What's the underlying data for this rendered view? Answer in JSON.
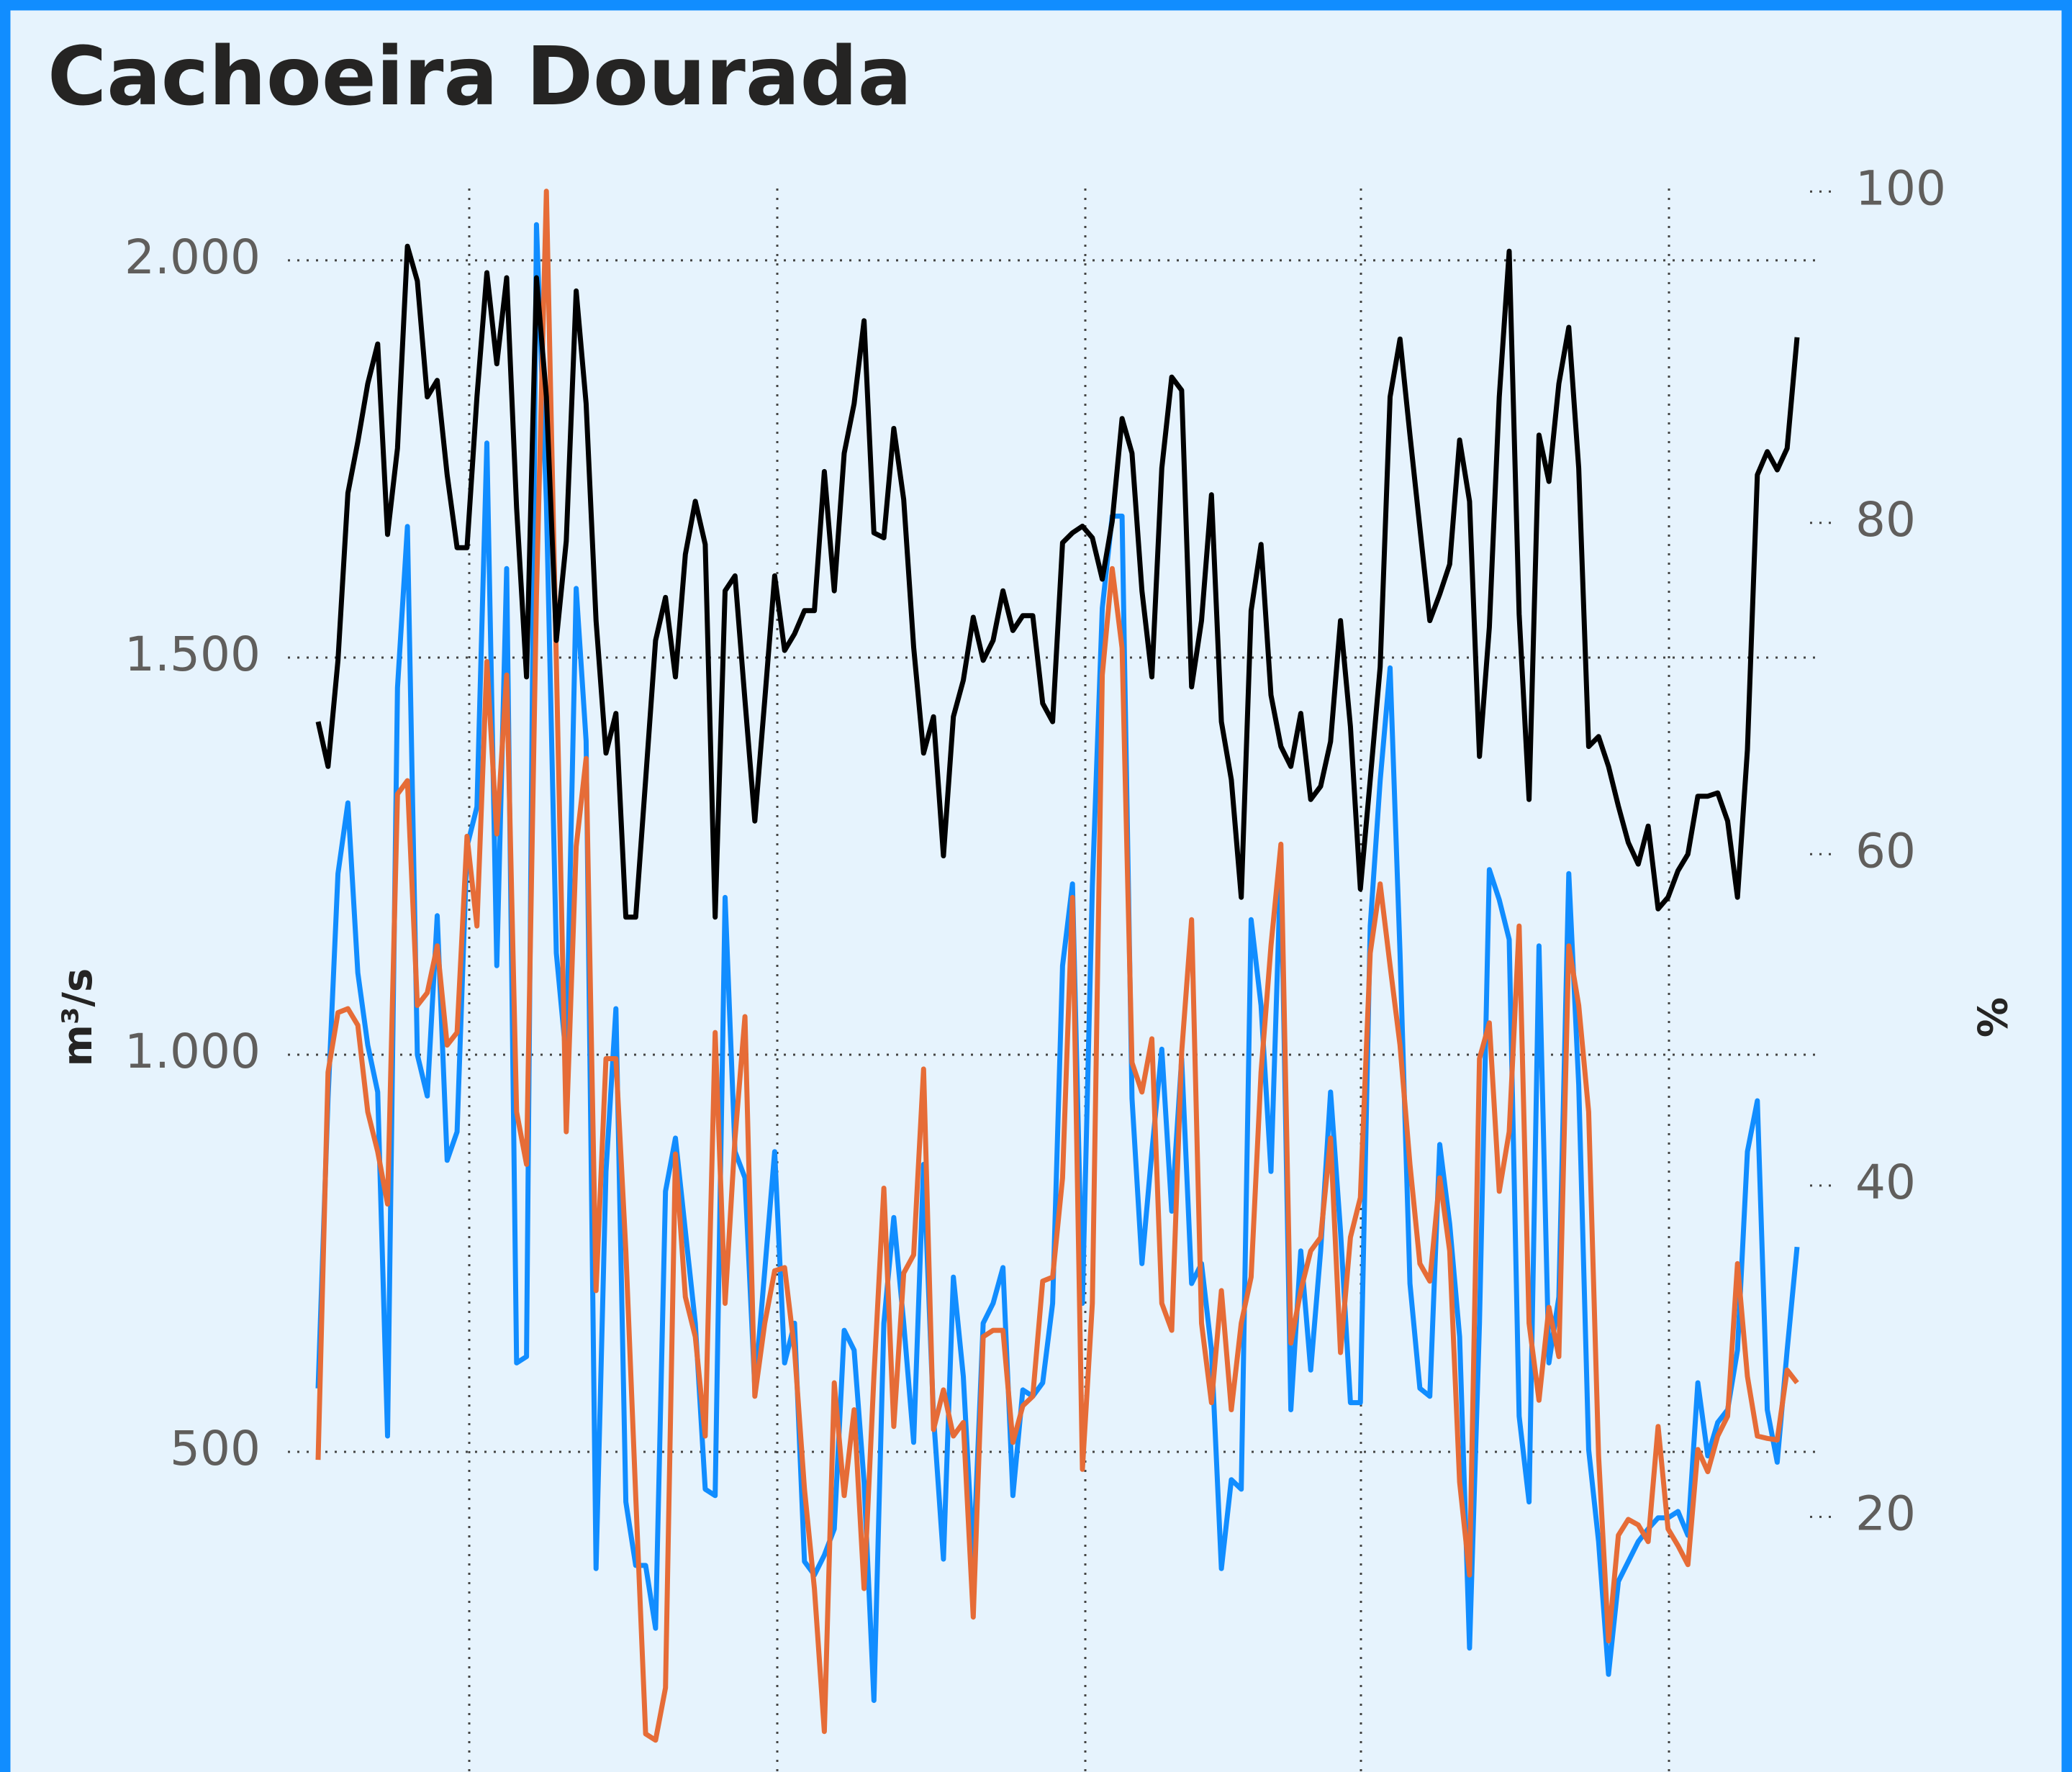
{
  "chart_data": {
    "type": "line",
    "title": "Cachoeira Dourada",
    "y_label": "m³/s",
    "y2_label": "%",
    "ylim": [
      97,
      2095
    ],
    "yticks": [
      500,
      {
        "value": 1000,
        "label": "1.000"
      },
      {
        "value": 1500,
        "label": "1.500"
      },
      {
        "value": 2000,
        "label": "2.000"
      }
    ],
    "y2lim": [
      4.6,
      100.4
    ],
    "y2ticks": [
      20,
      40,
      60,
      80,
      100
    ],
    "grid": true,
    "series": [
      {
        "color": "#118dff",
        "values": [
          580,
          945,
          1228,
          1317,
          1103,
          1012,
          953,
          520,
          1462,
          1665,
          1000,
          948,
          1175,
          867,
          903,
          1262,
          1312,
          1770,
          1112,
          1612,
          612,
          620,
          2045,
          1695,
          1128,
          995,
          1587,
          1395,
          353,
          853,
          1058,
          437,
          357,
          357,
          278,
          828,
          895,
          778,
          662,
          453,
          445,
          1198,
          878,
          845,
          580,
          728,
          878,
          612,
          662,
          362,
          345,
          370,
          403,
          653,
          628,
          462,
          187,
          662,
          795,
          662,
          512,
          862,
          545,
          365,
          720,
          595,
          362,
          662,
          687,
          732,
          445,
          578,
          570,
          587,
          687,
          1112,
          1215,
          687,
          1212,
          1562,
          1678,
          1678,
          945,
          737,
          878,
          1007,
          803,
          995,
          712,
          737,
          628,
          353,
          465,
          453,
          1170,
          1062,
          853,
          1245,
          553,
          753,
          603,
          753,
          953,
          778,
          562,
          562,
          1162,
          1345,
          1487,
          1128,
          712,
          580,
          570,
          887,
          787,
          645,
          253,
          662,
          1233,
          1195,
          1145,
          545,
          437,
          1137,
          612,
          695,
          1228,
          962,
          503,
          387,
          220,
          337,
          362,
          387,
          403,
          417,
          417,
          425,
          395,
          587,
          495,
          537,
          553,
          628,
          878,
          942,
          553,
          487,
          628,
          758
        ]
      },
      {
        "color": "#e66c37",
        "values": [
          490,
          978,
          1053,
          1058,
          1037,
          928,
          878,
          812,
          1328,
          1345,
          1062,
          1078,
          1137,
          1012,
          1028,
          1275,
          1162,
          1495,
          1278,
          1478,
          928,
          862,
          1578,
          2087,
          1495,
          903,
          1262,
          1373,
          703,
          995,
          995,
          753,
          445,
          145,
          137,
          203,
          875,
          695,
          645,
          520,
          1028,
          687,
          895,
          1048,
          570,
          662,
          728,
          732,
          628,
          453,
          328,
          148,
          587,
          445,
          553,
          328,
          595,
          832,
          532,
          725,
          748,
          982,
          528,
          578,
          520,
          537,
          292,
          645,
          653,
          653,
          512,
          558,
          570,
          715,
          720,
          845,
          1198,
          478,
          687,
          1478,
          1612,
          1512,
          990,
          953,
          1020,
          687,
          653,
          1003,
          1170,
          662,
          562,
          703,
          553,
          662,
          720,
          978,
          1137,
          1265,
          637,
          703,
          753,
          770,
          895,
          625,
          770,
          820,
          1128,
          1215,
          1112,
          1012,
          862,
          737,
          715,
          845,
          753,
          462,
          345,
          995,
          1040,
          828,
          903,
          1162,
          662,
          565,
          682,
          620,
          1137,
          1062,
          928,
          495,
          262,
          395,
          415,
          408,
          387,
          532,
          403,
          382,
          358,
          503,
          475,
          520,
          545,
          737,
          595,
          520,
          517,
          515,
          603,
          587
        ]
      },
      {
        "color": "#000000",
        "axis": "y2",
        "values": [
          68,
          65.3,
          71.7,
          81.8,
          84.9,
          88.4,
          90.8,
          79.3,
          84.5,
          96.7,
          94.6,
          87.6,
          88.6,
          82.9,
          78.5,
          78.5,
          87.6,
          95.1,
          89.6,
          94.8,
          80.9,
          70.7,
          94.8,
          87.6,
          72.9,
          78.9,
          94,
          87.2,
          74.1,
          66.1,
          68.5,
          56.2,
          56.2,
          64.5,
          72.9,
          75.5,
          70.7,
          78.1,
          81.3,
          78.7,
          56.2,
          75.9,
          76.8,
          69.3,
          62,
          69.3,
          76.8,
          72.3,
          73.3,
          74.7,
          74.7,
          83.1,
          75.9,
          84.2,
          87.2,
          92.2,
          79.4,
          79.1,
          85.7,
          81.4,
          72.5,
          66.1,
          68.3,
          59.9,
          68.3,
          70.5,
          74.3,
          71.7,
          72.9,
          75.9,
          73.5,
          74.4,
          74.4,
          69.1,
          68,
          78.8,
          79.4,
          79.8,
          79.1,
          76.6,
          80.1,
          86.3,
          84.2,
          75.9,
          70.7,
          83.3,
          88.8,
          88,
          70.1,
          74.1,
          81.7,
          68,
          64.5,
          57.4,
          74.7,
          78.7,
          69.6,
          66.5,
          65.3,
          68.5,
          63.3,
          64.1,
          66.8,
          74.1,
          67.7,
          57.9,
          64.5,
          71.3,
          87.6,
          91.1,
          85.3,
          79.7,
          74.1,
          75.7,
          77.5,
          85,
          81.3,
          65.9,
          73.7,
          87.6,
          96.4,
          74.5,
          63.3,
          85.3,
          82.5,
          88.4,
          91.8,
          83.3,
          66.5,
          67.1,
          65.3,
          62.9,
          60.7,
          59.4,
          61.7,
          56.7,
          57.4,
          59,
          60,
          63.5,
          63.5,
          63.7,
          62,
          57.4,
          66.3,
          82.9,
          84.3,
          83.2,
          84.5,
          91.2
        ]
      }
    ]
  }
}
